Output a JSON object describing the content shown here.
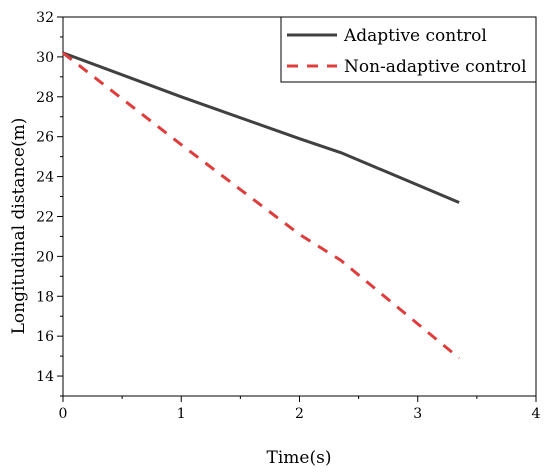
{
  "chart_data": {
    "type": "line",
    "title": "",
    "xlabel": "Time(s)",
    "ylabel": "Longitudinal distance(m)",
    "xlim": [
      0,
      4
    ],
    "ylim": [
      13,
      32
    ],
    "xticks": [
      0,
      1,
      2,
      3,
      4
    ],
    "yticks": [
      14,
      16,
      18,
      20,
      22,
      24,
      26,
      28,
      30,
      32
    ],
    "grid": false,
    "legend": "top-right",
    "series": [
      {
        "name": "Adaptive control",
        "color": "#404040",
        "dash": "solid",
        "x": [
          0,
          1,
          2,
          2.35,
          3.35
        ],
        "y": [
          30.2,
          28.0,
          25.9,
          25.2,
          22.7
        ]
      },
      {
        "name": "Non-adaptive control",
        "color": "#e03c3c",
        "dash": "dashed",
        "x": [
          0,
          1,
          2,
          2.35,
          3.35
        ],
        "y": [
          30.2,
          25.6,
          21.1,
          19.8,
          14.9
        ]
      }
    ]
  }
}
